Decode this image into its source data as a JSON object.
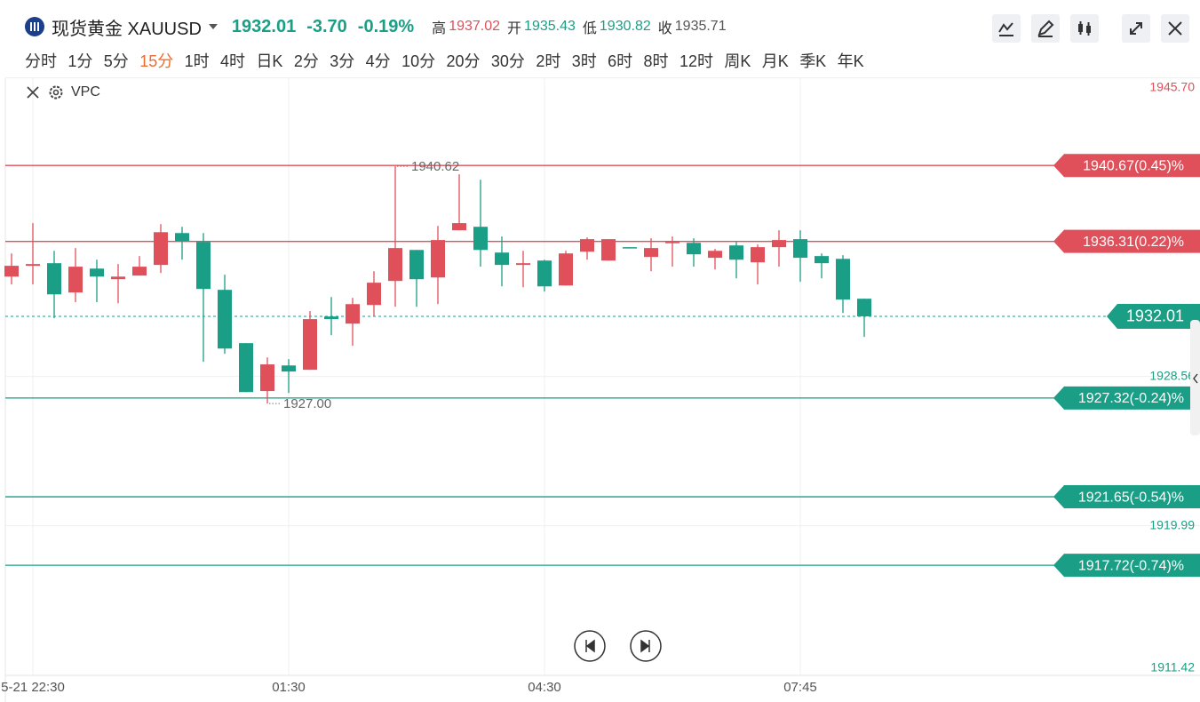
{
  "header": {
    "symbol": "现货黄金 XAUUSD",
    "price": "1932.01",
    "change": "-3.70",
    "change_pct": "-0.19%",
    "stats": [
      {
        "label": "高",
        "value": "1937.02",
        "tone": "up"
      },
      {
        "label": "开",
        "value": "1935.43",
        "tone": "down"
      },
      {
        "label": "低",
        "value": "1930.82",
        "tone": "down"
      },
      {
        "label": "收",
        "value": "1935.71",
        "tone": "flat"
      }
    ]
  },
  "timeframes": [
    "分时",
    "1分",
    "5分",
    "15分",
    "1时",
    "4时",
    "日K",
    "2分",
    "3分",
    "4分",
    "10分",
    "20分",
    "30分",
    "2时",
    "3时",
    "6时",
    "8时",
    "12时",
    "周K",
    "月K",
    "季K",
    "年K"
  ],
  "active_timeframe": "15分",
  "indicator": "VPC",
  "chart_data": {
    "type": "candlestick",
    "categories": [
      null,
      "5-21 22:30",
      null,
      null,
      null,
      null,
      null,
      null,
      null,
      null,
      null,
      null,
      null,
      "01:30",
      null,
      null,
      null,
      null,
      null,
      null,
      null,
      null,
      null,
      null,
      null,
      "04:30",
      null,
      null,
      null,
      null,
      null,
      null,
      null,
      null,
      null,
      null,
      null,
      "07:45",
      null,
      null,
      null
    ],
    "open": [
      1934.29,
      1934.91,
      1935.06,
      1933.38,
      1934.75,
      1934.14,
      1934.35,
      1934.96,
      1936.79,
      1936.28,
      1933.53,
      1930.47,
      1927.72,
      1929.19,
      1928.94,
      1932.0,
      1931.59,
      1932.66,
      1934.04,
      1935.82,
      1934.24,
      1936.95,
      1937.15,
      1935.67,
      1934.96,
      1935.21,
      1933.78,
      1935.72,
      1935.21,
      1935.98,
      1935.42,
      1936.23,
      1936.23,
      1935.37,
      1936.08,
      1935.11,
      1935.98,
      1936.44,
      1935.47,
      1935.31,
      1933.02
    ],
    "high": [
      1935.62,
      1937.36,
      1935.77,
      1935.93,
      1935.26,
      1935.01,
      1935.47,
      1937.3,
      1937.15,
      1936.79,
      1934.4,
      1930.47,
      1929.65,
      1929.55,
      1932.31,
      1933.12,
      1933.07,
      1934.6,
      1940.62,
      1935.82,
      1937.2,
      1940.16,
      1939.85,
      1936.59,
      1935.77,
      1935.26,
      1935.77,
      1936.54,
      1936.44,
      1935.98,
      1936.49,
      1936.59,
      1936.49,
      1935.88,
      1936.28,
      1936.13,
      1936.95,
      1936.95,
      1935.62,
      1935.52,
      1933.02
    ],
    "low": [
      1933.84,
      1933.84,
      1931.9,
      1932.82,
      1932.82,
      1932.76,
      1934.35,
      1934.5,
      1935.26,
      1929.4,
      1929.86,
      1927.66,
      1927.0,
      1927.61,
      1928.94,
      1930.93,
      1930.32,
      1932.0,
      1932.56,
      1932.56,
      1932.71,
      1936.95,
      1934.86,
      1933.73,
      1933.68,
      1933.43,
      1933.78,
      1935.26,
      1935.21,
      1935.93,
      1934.6,
      1934.86,
      1934.86,
      1934.7,
      1934.19,
      1933.84,
      1934.86,
      1933.99,
      1934.19,
      1932.2,
      1930.83
    ],
    "close": [
      1934.91,
      1935.01,
      1933.27,
      1934.86,
      1934.29,
      1934.29,
      1934.86,
      1936.84,
      1936.33,
      1933.58,
      1930.16,
      1927.66,
      1929.25,
      1928.84,
      1931.85,
      1931.85,
      1932.71,
      1933.94,
      1935.93,
      1934.14,
      1936.39,
      1937.36,
      1935.82,
      1934.96,
      1935.06,
      1933.73,
      1935.62,
      1936.44,
      1936.44,
      1935.93,
      1935.93,
      1936.28,
      1935.57,
      1935.77,
      1935.26,
      1935.98,
      1936.39,
      1935.37,
      1935.06,
      1932.97,
      1932.01
    ],
    "up_color": "#e0505a",
    "down_color": "#1a9f86",
    "ylim": [
      1911.42,
      1945.7
    ],
    "yticks": [
      1911.42,
      1919.99,
      1928.56,
      {
        "value": 1945.7,
        "label": "1945.70"
      }
    ],
    "grid": true,
    "price_lines": [
      {
        "value": 1940.67,
        "label": "1940.67(0.45)%",
        "color": "#e0505a"
      },
      {
        "value": 1936.31,
        "label": "1936.31(0.22)%",
        "color": "#e0505a"
      },
      {
        "value": 1927.32,
        "label": "1927.32(-0.24)%",
        "color": "#1a9f86"
      },
      {
        "value": 1921.65,
        "label": "1921.65(-0.54)%",
        "color": "#1a9f86"
      },
      {
        "value": 1917.72,
        "label": "1917.72(-0.74)%",
        "color": "#1a9f86"
      }
    ],
    "last_price": 1932.01,
    "last_price_color": "#1a9f86",
    "annotations": [
      {
        "text": "1940.62",
        "value": 1940.62,
        "kind": "high"
      },
      {
        "text": "1927.00",
        "value": 1927.0,
        "kind": "low"
      }
    ]
  }
}
